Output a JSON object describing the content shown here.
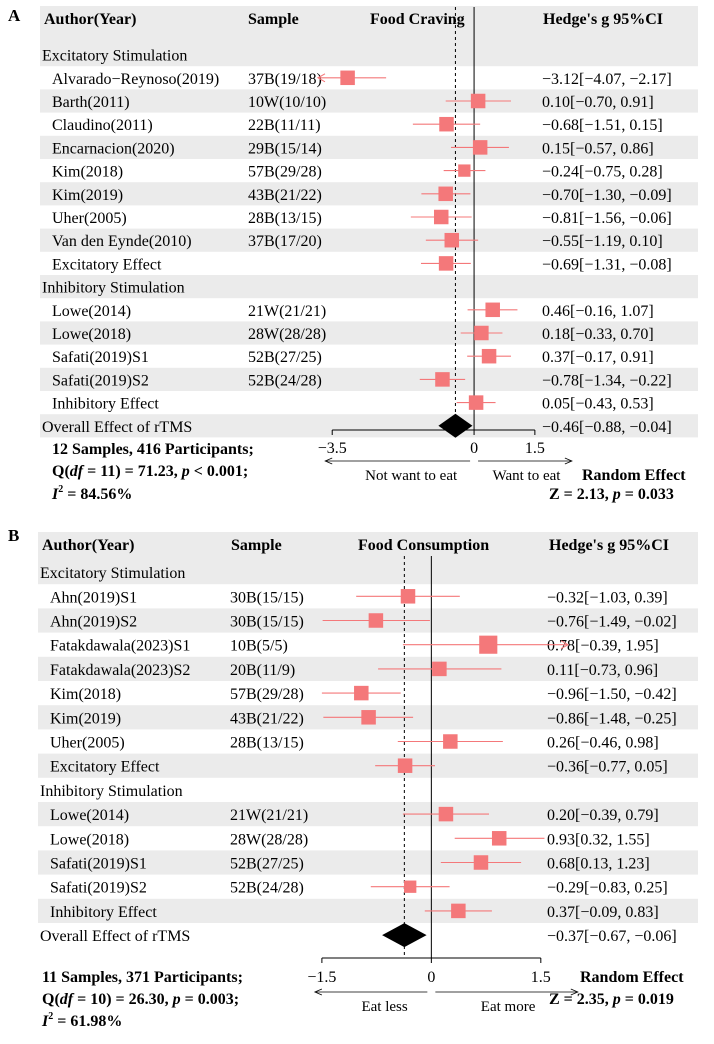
{
  "chart_data": [
    {
      "type": "forest",
      "panel_label": "A",
      "headers": {
        "study": "Author(Year)",
        "sample": "Sample",
        "plot": "Food Craving",
        "ci": "Hedge's g 95%CI"
      },
      "xlim": [
        -3.9,
        1.75
      ],
      "ticks": [
        {
          "value": -3.5,
          "label": "−3.5"
        },
        {
          "value": 0,
          "label": "0"
        },
        {
          "value": 1.5,
          "label": "1.5"
        }
      ],
      "reference_line": -0.46,
      "direction_labels": {
        "left": "Not want to eat",
        "right": "Want to eat"
      },
      "rows": [
        {
          "kind": "group",
          "label": "Excitatory Stimulation",
          "shade": true
        },
        {
          "kind": "study",
          "label": "Alvarado−Reynoso(2019)",
          "sample": "37B(19/18)",
          "g": -3.12,
          "lo": -4.07,
          "hi": -2.17,
          "ci_text": "−3.12[−4.07, −2.17]",
          "shade": false,
          "weight": 1
        },
        {
          "kind": "study",
          "label": "Barth(2011)",
          "sample": "10W(10/10)",
          "g": 0.1,
          "lo": -0.7,
          "hi": 0.91,
          "ci_text": "0.10[−0.70, 0.91]",
          "shade": true,
          "weight": 1
        },
        {
          "kind": "study",
          "label": "Claudino(2011)",
          "sample": "22B(11/11)",
          "g": -0.68,
          "lo": -1.51,
          "hi": 0.15,
          "ci_text": "−0.68[−1.51, 0.15]",
          "shade": false,
          "weight": 1
        },
        {
          "kind": "study",
          "label": "Encarnacion(2020)",
          "sample": "29B(15/14)",
          "g": 0.15,
          "lo": -0.57,
          "hi": 0.86,
          "ci_text": "0.15[−0.57, 0.86]",
          "shade": true,
          "weight": 1
        },
        {
          "kind": "study",
          "label": "Kim(2018)",
          "sample": "57B(29/28)",
          "g": -0.24,
          "lo": -0.75,
          "hi": 0.28,
          "ci_text": "−0.24[−0.75, 0.28]",
          "shade": false,
          "weight": 0.85
        },
        {
          "kind": "study",
          "label": "Kim(2019)",
          "sample": "43B(21/22)",
          "g": -0.7,
          "lo": -1.3,
          "hi": -0.09,
          "ci_text": "−0.70[−1.30, −0.09]",
          "shade": true,
          "weight": 1
        },
        {
          "kind": "study",
          "label": "Uher(2005)",
          "sample": "28B(13/15)",
          "g": -0.81,
          "lo": -1.56,
          "hi": -0.06,
          "ci_text": "−0.81[−1.56, −0.06]",
          "shade": false,
          "weight": 1
        },
        {
          "kind": "study",
          "label": "Van den Eynde(2010)",
          "sample": "37B(17/20)",
          "g": -0.55,
          "lo": -1.19,
          "hi": 0.1,
          "ci_text": "−0.55[−1.19, 0.10]",
          "shade": true,
          "weight": 1
        },
        {
          "kind": "effect",
          "label": "Excitatory Effect",
          "sample": "",
          "g": -0.69,
          "lo": -1.31,
          "hi": -0.08,
          "ci_text": "−0.69[−1.31, −0.08]",
          "shade": false,
          "weight": 1
        },
        {
          "kind": "group",
          "label": "Inhibitory Stimulation",
          "shade": true
        },
        {
          "kind": "study",
          "label": "Lowe(2014)",
          "sample": "21W(21/21)",
          "g": 0.46,
          "lo": -0.16,
          "hi": 1.07,
          "ci_text": "0.46[−0.16, 1.07]",
          "shade": false,
          "weight": 1
        },
        {
          "kind": "study",
          "label": "Lowe(2018)",
          "sample": "28W(28/28)",
          "g": 0.18,
          "lo": -0.33,
          "hi": 0.7,
          "ci_text": "0.18[−0.33, 0.70]",
          "shade": true,
          "weight": 1
        },
        {
          "kind": "study",
          "label": "Safati(2019)S1",
          "sample": "52B(27/25)",
          "g": 0.37,
          "lo": -0.17,
          "hi": 0.91,
          "ci_text": "0.37[−0.17, 0.91]",
          "shade": false,
          "weight": 1
        },
        {
          "kind": "study",
          "label": "Safati(2019)S2",
          "sample": "52B(24/28)",
          "g": -0.78,
          "lo": -1.34,
          "hi": -0.22,
          "ci_text": "−0.78[−1.34, −0.22]",
          "shade": true,
          "weight": 1
        },
        {
          "kind": "effect",
          "label": "Inhibitory Effect",
          "sample": "",
          "g": 0.05,
          "lo": -0.43,
          "hi": 0.53,
          "ci_text": "0.05[−0.43, 0.53]",
          "shade": false,
          "weight": 1
        },
        {
          "kind": "overall",
          "label": "Overall Effect of rTMS",
          "sample": "",
          "g": -0.46,
          "lo": -0.88,
          "hi": -0.04,
          "ci_text": "−0.46[−0.88, −0.04]",
          "shade": true
        }
      ],
      "footer": {
        "samples": "12 Samples, 416 Participants;",
        "q": {
          "pre": "Q(",
          "df": "df",
          "mid": " = 11) = 71.23, ",
          "p": "p",
          "post": " < 0.001;"
        },
        "i2": {
          "i": "I",
          "sup": "2",
          "post": " = 84.56%"
        },
        "random_effect": "Random Effect",
        "z": {
          "pre": "Z = 2.13, ",
          "p": "p",
          "post": " = 0.033"
        }
      }
    },
    {
      "type": "forest",
      "panel_label": "B",
      "headers": {
        "study": "Author(Year)",
        "sample": "Sample",
        "plot": "Food Consumption",
        "ci": "Hedge's g 95%CI"
      },
      "xlim": [
        -1.8,
        1.9
      ],
      "ticks": [
        {
          "value": -1.5,
          "label": "−1.5"
        },
        {
          "value": 0,
          "label": "0"
        },
        {
          "value": 1.5,
          "label": "1.5"
        }
      ],
      "reference_line": -0.37,
      "direction_labels": {
        "left": "Eat less",
        "right": "Eat more"
      },
      "rows": [
        {
          "kind": "group",
          "label": "Excitatory Stimulation",
          "shade": true
        },
        {
          "kind": "study",
          "label": "Ahn(2019)S1",
          "sample": "30B(15/15)",
          "g": -0.32,
          "lo": -1.03,
          "hi": 0.39,
          "ci_text": "−0.32[−1.03, 0.39]",
          "shade": false,
          "weight": 1
        },
        {
          "kind": "study",
          "label": "Ahn(2019)S2",
          "sample": "30B(15/15)",
          "g": -0.76,
          "lo": -1.49,
          "hi": -0.02,
          "ci_text": "−0.76[−1.49, −0.02]",
          "shade": true,
          "weight": 1
        },
        {
          "kind": "study",
          "label": "Fatakdawala(2023)S1",
          "sample": "10B(5/5)",
          "g": 0.78,
          "lo": -0.39,
          "hi": 1.95,
          "ci_text": "0.78[−0.39, 1.95]",
          "shade": false,
          "weight": 1.25
        },
        {
          "kind": "study",
          "label": "Fatakdawala(2023)S2",
          "sample": "20B(11/9)",
          "g": 0.11,
          "lo": -0.73,
          "hi": 0.96,
          "ci_text": "0.11[−0.73, 0.96]",
          "shade": true,
          "weight": 1
        },
        {
          "kind": "study",
          "label": "Kim(2018)",
          "sample": "57B(29/28)",
          "g": -0.96,
          "lo": -1.5,
          "hi": -0.42,
          "ci_text": "−0.96[−1.50, −0.42]",
          "shade": false,
          "weight": 1
        },
        {
          "kind": "study",
          "label": "Kim(2019)",
          "sample": "43B(21/22)",
          "g": -0.86,
          "lo": -1.48,
          "hi": -0.25,
          "ci_text": "−0.86[−1.48, −0.25]",
          "shade": true,
          "weight": 1
        },
        {
          "kind": "study",
          "label": "Uher(2005)",
          "sample": "28B(13/15)",
          "g": 0.26,
          "lo": -0.46,
          "hi": 0.98,
          "ci_text": "0.26[−0.46, 0.98]",
          "shade": false,
          "weight": 1
        },
        {
          "kind": "effect",
          "label": "Excitatory Effect",
          "sample": "",
          "g": -0.36,
          "lo": -0.77,
          "hi": 0.05,
          "ci_text": "−0.36[−0.77, 0.05]",
          "shade": true,
          "weight": 1
        },
        {
          "kind": "group",
          "label": "Inhibitory Stimulation",
          "shade": false
        },
        {
          "kind": "study",
          "label": "Lowe(2014)",
          "sample": "21W(21/21)",
          "g": 0.2,
          "lo": -0.39,
          "hi": 0.79,
          "ci_text": "0.20[−0.39, 0.79]",
          "shade": true,
          "weight": 1
        },
        {
          "kind": "study",
          "label": "Lowe(2018)",
          "sample": "28W(28/28)",
          "g": 0.93,
          "lo": 0.32,
          "hi": 1.55,
          "ci_text": "0.93[0.32, 1.55]",
          "shade": false,
          "weight": 1
        },
        {
          "kind": "study",
          "label": "Safati(2019)S1",
          "sample": "52B(27/25)",
          "g": 0.68,
          "lo": 0.13,
          "hi": 1.23,
          "ci_text": "0.68[0.13, 1.23]",
          "shade": true,
          "weight": 1
        },
        {
          "kind": "study",
          "label": "Safati(2019)S2",
          "sample": "52B(24/28)",
          "g": -0.29,
          "lo": -0.83,
          "hi": 0.25,
          "ci_text": "−0.29[−0.83, 0.25]",
          "shade": false,
          "weight": 0.85
        },
        {
          "kind": "effect",
          "label": "Inhibitory Effect",
          "sample": "",
          "g": 0.37,
          "lo": -0.09,
          "hi": 0.83,
          "ci_text": "0.37[−0.09, 0.83]",
          "shade": true,
          "weight": 1
        },
        {
          "kind": "overall",
          "label": "Overall Effect of rTMS",
          "sample": "",
          "g": -0.37,
          "lo": -0.67,
          "hi": -0.06,
          "ci_text": "−0.37[−0.67, −0.06]",
          "shade": false
        }
      ],
      "footer": {
        "samples": "11 Samples, 371 Participants;",
        "q": {
          "pre": "Q(",
          "df": "df",
          "mid": " = 10) = 26.30, ",
          "p": "p",
          "post": " = 0.003;"
        },
        "i2": {
          "i": "I",
          "sup": "2",
          "post": " = 61.98%"
        },
        "random_effect": "Random Effect",
        "z": {
          "pre": "Z = 2.35, ",
          "p": "p",
          "post": " = 0.019"
        }
      }
    }
  ],
  "colors": {
    "marker": "#F4787A",
    "shade": "#EBEBEB",
    "text": "#000000",
    "axis": "#000000"
  }
}
